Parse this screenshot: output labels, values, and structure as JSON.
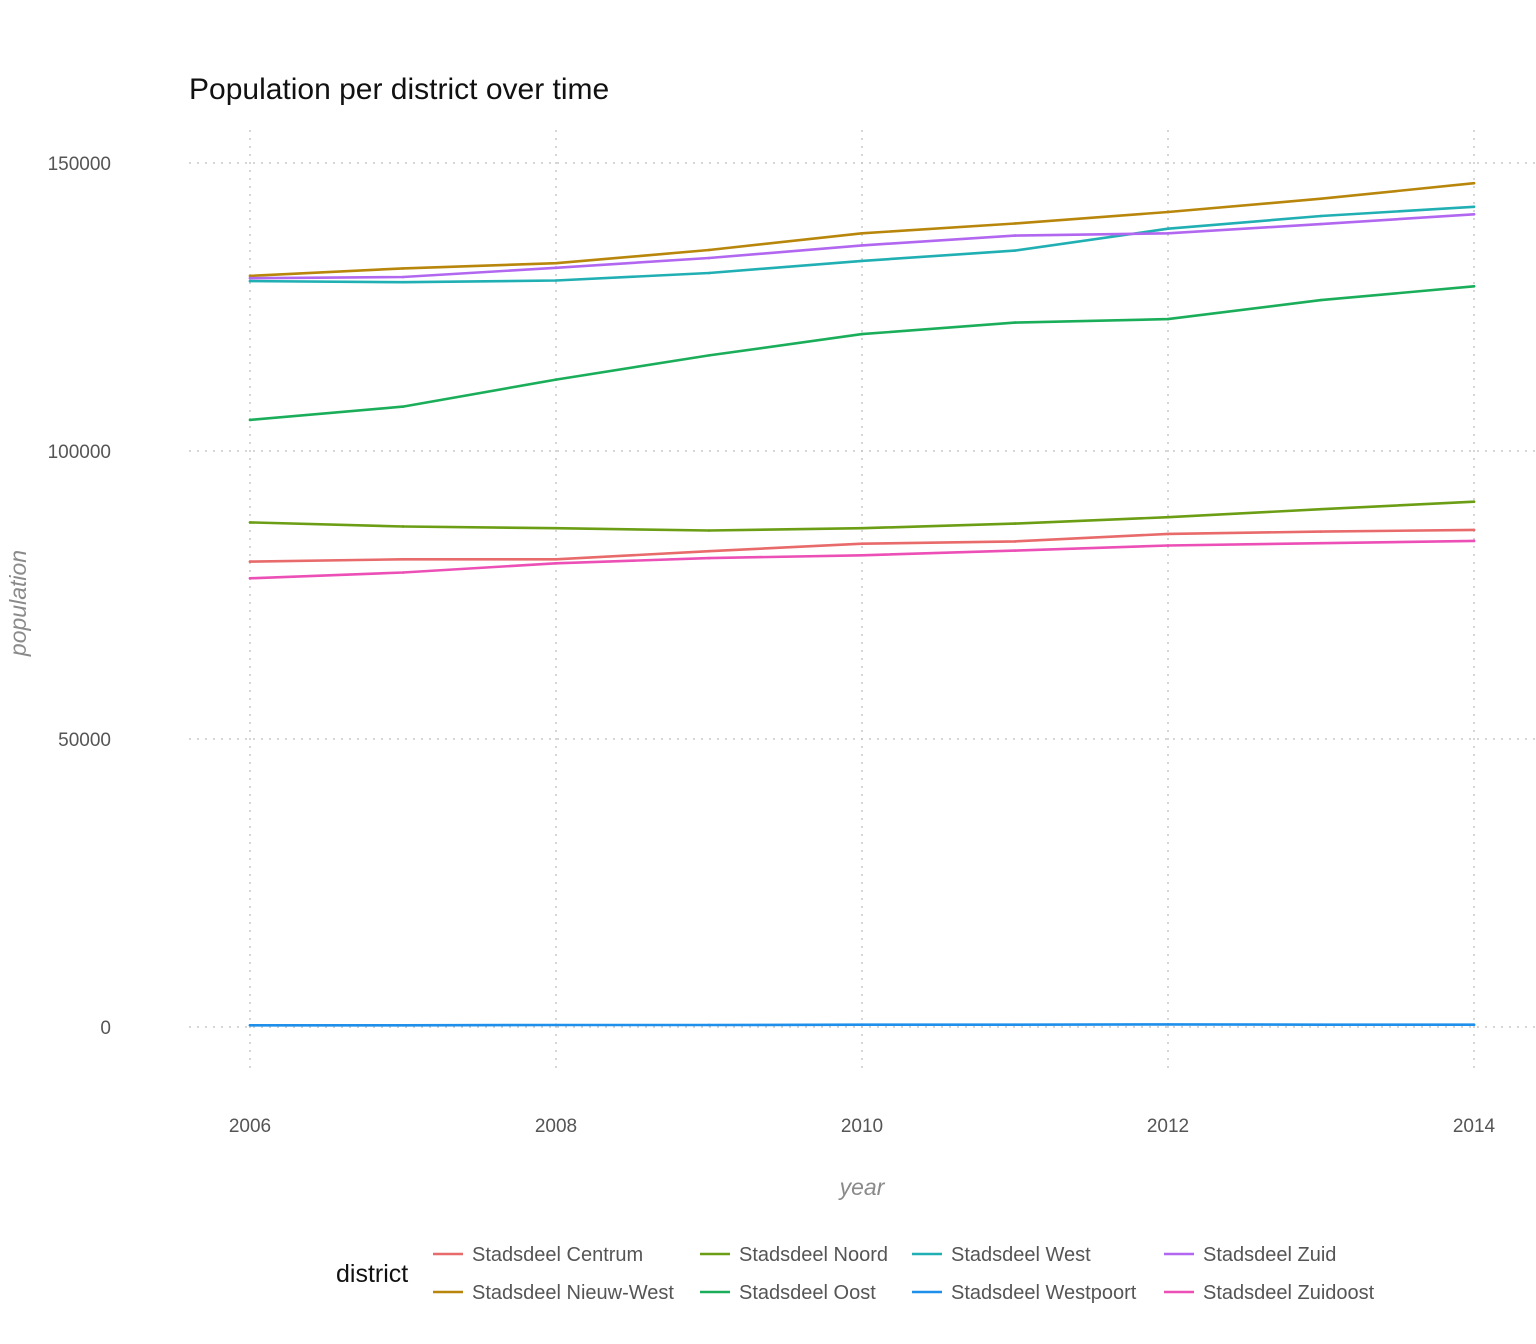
{
  "chart_data": {
    "type": "line",
    "title": "Population per district over time",
    "xlabel": "year",
    "ylabel": "population",
    "x": [
      2006,
      2007,
      2008,
      2009,
      2010,
      2011,
      2012,
      2013,
      2014
    ],
    "x_ticks": [
      2006,
      2008,
      2010,
      2012,
      2014
    ],
    "x_tick_labels": [
      "2006",
      "2008",
      "2010",
      "2012",
      "2014"
    ],
    "xlim": [
      2005.6,
      2014.4
    ],
    "y_ticks": [
      0,
      50000,
      100000,
      150000
    ],
    "y_tick_labels": [
      "0",
      "50000",
      "100000",
      "150000"
    ],
    "ylim": [
      -7000,
      156500
    ],
    "grid": true,
    "legend": {
      "title": "district",
      "placement": "bottom"
    },
    "series": [
      {
        "name": "Stadsdeel Centrum",
        "color": "#E86A6A",
        "values": [
          80800,
          81200,
          81200,
          82600,
          83900,
          84300,
          85600,
          86000,
          86300
        ]
      },
      {
        "name": "Stadsdeel Nieuw-West",
        "color": "#B8860B",
        "values": [
          130400,
          131700,
          132600,
          134900,
          137800,
          139500,
          141500,
          143800,
          146500
        ]
      },
      {
        "name": "Stadsdeel Noord",
        "color": "#6B9E14",
        "values": [
          87600,
          86900,
          86600,
          86200,
          86600,
          87400,
          88500,
          89900,
          91200
        ]
      },
      {
        "name": "Stadsdeel Oost",
        "color": "#1BAE5A",
        "values": [
          105400,
          107700,
          112400,
          116600,
          120300,
          122300,
          122900,
          126200,
          128600
        ]
      },
      {
        "name": "Stadsdeel West",
        "color": "#20AFB3",
        "values": [
          129500,
          129300,
          129600,
          130900,
          133000,
          134800,
          138600,
          140800,
          142400
        ]
      },
      {
        "name": "Stadsdeel Westpoort",
        "color": "#1E8FEA",
        "values": [
          300,
          300,
          350,
          350,
          400,
          400,
          450,
          400,
          400
        ]
      },
      {
        "name": "Stadsdeel Zuid",
        "color": "#B267F0",
        "values": [
          130000,
          130200,
          131800,
          133500,
          135700,
          137400,
          137800,
          139400,
          141100
        ]
      },
      {
        "name": "Stadsdeel Zuidoost",
        "color": "#EC4FB5",
        "values": [
          77900,
          78900,
          80500,
          81400,
          81900,
          82700,
          83600,
          84000,
          84400
        ]
      }
    ]
  }
}
